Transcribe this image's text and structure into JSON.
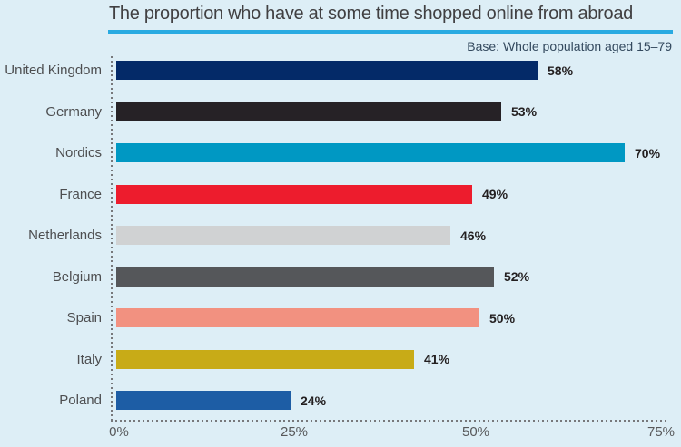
{
  "header": {
    "title": "The proportion who have at some time shopped online from abroad",
    "base_note": "Base: Whole population aged 15–79"
  },
  "colors": {
    "background": "#ddeef6",
    "title_text": "#414042",
    "accent_rule": "#29aae1",
    "base_note_text": "#33495e",
    "category_label_text": "#4d4e50",
    "value_label_text": "#231f20",
    "axis_tick_text": "#57585a",
    "dotted_line": "#77787b"
  },
  "chart_data": {
    "type": "bar",
    "orientation": "horizontal",
    "title": "The proportion who have at some time shopped online from abroad",
    "base_note": "Base: Whole population aged 15–79",
    "categories": [
      "United Kingdom",
      "Germany",
      "Nordics",
      "France",
      "Netherlands",
      "Belgium",
      "Spain",
      "Italy",
      "Poland"
    ],
    "values": [
      58,
      53,
      70,
      49,
      46,
      52,
      50,
      41,
      24
    ],
    "value_suffix": "%",
    "bar_colors": [
      "#042a68",
      "#262226",
      "#0098c3",
      "#ed1c2d",
      "#d0d2d3",
      "#55575a",
      "#f29180",
      "#c8ab17",
      "#1d5da5"
    ],
    "x_ticks": [
      "0%",
      "25%",
      "50%",
      "75%"
    ],
    "xlim": [
      0,
      75
    ],
    "grid": false,
    "legend": "none",
    "value_labels": "end-of-bar"
  }
}
